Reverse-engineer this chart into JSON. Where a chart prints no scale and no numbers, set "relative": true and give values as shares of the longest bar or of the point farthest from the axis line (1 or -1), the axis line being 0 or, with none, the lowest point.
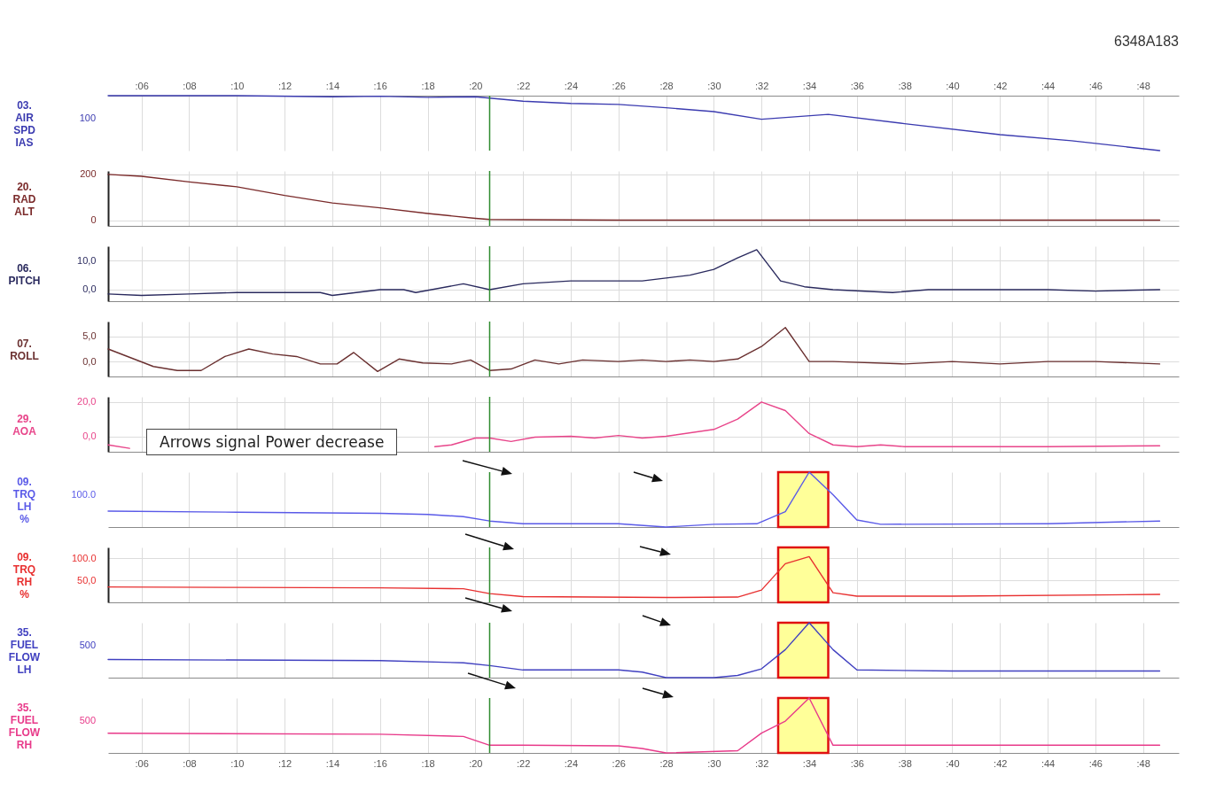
{
  "chart_data": [
    {
      "type": "line",
      "title": "6348A183",
      "ylabel": "03.\nAIR\nSPD\nIAS",
      "x": [
        4.6,
        10,
        14,
        16,
        18,
        20,
        21,
        22,
        24,
        26,
        28,
        30,
        32,
        34.8,
        38,
        42,
        45,
        48.7
      ],
      "series": [
        {
          "color": "#3b3bb0",
          "values": [
            1,
            1,
            0.98,
            0.99,
            0.97,
            0.98,
            0.94,
            0.9,
            0.86,
            0.84,
            0.78,
            0.71,
            0.57,
            0.66,
            0.49,
            0.29,
            0.18,
            0
          ]
        }
      ],
      "relative": true,
      "annotations": [
        "100"
      ],
      "xlim": [
        4.6,
        49.5
      ],
      "xticks": [
        {
          "value": 6,
          "label": ":06"
        },
        {
          "value": 8,
          "label": ":08"
        },
        {
          "value": 10,
          "label": ":10"
        },
        {
          "value": 12,
          "label": ":12"
        },
        {
          "value": 14,
          "label": ":14"
        },
        {
          "value": 16,
          "label": ":16"
        },
        {
          "value": 18,
          "label": ":18"
        },
        {
          "value": 20,
          "label": ":20"
        },
        {
          "value": 22,
          "label": ":22"
        },
        {
          "value": 24,
          "label": ":24"
        },
        {
          "value": 26,
          "label": ":26"
        },
        {
          "value": 28,
          "label": ":28"
        },
        {
          "value": 30,
          "label": ":30"
        },
        {
          "value": 32,
          "label": ":32"
        },
        {
          "value": 34,
          "label": ":34"
        },
        {
          "value": 36,
          "label": ":36"
        },
        {
          "value": 38,
          "label": ":38"
        },
        {
          "value": 40,
          "label": ":40"
        },
        {
          "value": 42,
          "label": ":42"
        },
        {
          "value": 44,
          "label": ":44"
        },
        {
          "value": 46,
          "label": ":46"
        },
        {
          "value": 48,
          "label": ":48"
        }
      ],
      "grid": true,
      "ref_lines": [
        {
          "axis": "x",
          "value": 20.6,
          "color": "#2e8b2e"
        }
      ]
    },
    {
      "type": "line",
      "ylabel": "20.\nRAD\nALT",
      "x": [
        4.6,
        6,
        8,
        10,
        12,
        14,
        16,
        18,
        20,
        20.6,
        22,
        24,
        26,
        48.7
      ],
      "series": [
        {
          "color": "#7a2a2a",
          "values": [
            200,
            192,
            167,
            146,
            108,
            75,
            54,
            29,
            8,
            3,
            2,
            1,
            0,
            0
          ]
        }
      ],
      "xlim": [
        4.6,
        49.5
      ],
      "xticks": [
        6,
        8,
        10,
        12,
        14,
        16,
        18,
        20,
        22,
        24,
        26,
        28,
        30,
        32,
        34,
        36,
        38,
        40,
        42,
        44,
        46,
        48
      ],
      "ylim": [
        -25,
        215
      ],
      "yticks": [
        200,
        0
      ],
      "grid": true,
      "tick_labels": "y",
      "ref_lines": [
        {
          "axis": "x",
          "value": 20.6,
          "color": "#2e8b2e"
        }
      ]
    },
    {
      "type": "line",
      "ylabel": "06.\nPITCH",
      "x": [
        4.6,
        6,
        8,
        10,
        12,
        13.5,
        14,
        16,
        17,
        17.5,
        19.5,
        20.6,
        22,
        24,
        26,
        27,
        28,
        29,
        30,
        31,
        31.8,
        32.8,
        33.8,
        35,
        37.5,
        39,
        44,
        46,
        48.7
      ],
      "series": [
        {
          "color": "#2a2a5e",
          "values": [
            -1.5,
            -2,
            -1.5,
            -1,
            -1,
            -1,
            -2,
            0,
            0,
            -1,
            2,
            0,
            2,
            3,
            3,
            3,
            4,
            5,
            7,
            11,
            13.8,
            3,
            1,
            0,
            -1,
            0,
            0,
            -0.5,
            0
          ]
        }
      ],
      "xlim": [
        4.6,
        49.5
      ],
      "xticks": [
        6,
        8,
        10,
        12,
        14,
        16,
        18,
        20,
        22,
        24,
        26,
        28,
        30,
        32,
        34,
        36,
        38,
        40,
        42,
        44,
        46,
        48
      ],
      "ylim": [
        -4,
        15
      ],
      "yticks": [
        {
          "value": 10,
          "label": "10,0"
        },
        {
          "value": 0,
          "label": "0,0"
        }
      ],
      "grid": true,
      "tick_labels": "y",
      "ref_lines": [
        {
          "axis": "x",
          "value": 20.6,
          "color": "#2e8b2e"
        }
      ]
    },
    {
      "type": "line",
      "ylabel": "07.\nROLL",
      "x": [
        4.6,
        6.5,
        7.5,
        8.5,
        9.5,
        10.5,
        11.5,
        12.5,
        13.5,
        14.2,
        14.9,
        15.9,
        16.8,
        17.8,
        19,
        19.8,
        20.6,
        21.5,
        22.5,
        23.5,
        24.5,
        26,
        27,
        28,
        29,
        30,
        31,
        32,
        33,
        34,
        35,
        38,
        40,
        42,
        44,
        46,
        48.7
      ],
      "series": [
        {
          "color": "#6a3030",
          "values": [
            2.5,
            -1,
            -1.8,
            -1.8,
            1,
            2.5,
            1.5,
            1,
            -0.5,
            -0.5,
            1.8,
            -2,
            0.5,
            -0.3,
            -0.5,
            0.3,
            -1.8,
            -1.5,
            0.3,
            -0.5,
            0.3,
            0,
            0.3,
            0,
            0.3,
            0,
            0.5,
            3,
            6.8,
            0,
            0,
            -0.5,
            0,
            -0.5,
            0,
            0,
            -0.5
          ]
        }
      ],
      "xlim": [
        4.6,
        49.5
      ],
      "xticks": [
        6,
        8,
        10,
        12,
        14,
        16,
        18,
        20,
        22,
        24,
        26,
        28,
        30,
        32,
        34,
        36,
        38,
        40,
        42,
        44,
        46,
        48
      ],
      "ylim": [
        -3,
        8
      ],
      "yticks": [
        {
          "value": 5,
          "label": "5,0"
        },
        {
          "value": 0,
          "label": "0,0"
        }
      ],
      "grid": true,
      "tick_labels": "y",
      "ref_lines": [
        {
          "axis": "x",
          "value": 20.6,
          "color": "#2e8b2e"
        }
      ]
    },
    {
      "type": "line",
      "ylabel": "29.\nAOA",
      "x": [
        4.6,
        5.5,
        12,
        18.3,
        19,
        20,
        20.6,
        21.5,
        22.5,
        24,
        25,
        26,
        27,
        28,
        30,
        31,
        32,
        33,
        34,
        35,
        36,
        37,
        38,
        44,
        48.7
      ],
      "series": [
        {
          "color": "#e8458a",
          "values": [
            -5,
            -7,
            null,
            -6,
            -5,
            -1,
            -1,
            -3,
            -0.5,
            0,
            -1,
            0.5,
            -1,
            0,
            4,
            10,
            20,
            15,
            1.6,
            -5,
            -6,
            -5,
            -6,
            -6,
            -5.5
          ]
        }
      ],
      "xlim": [
        4.6,
        49.5
      ],
      "xticks": [
        6,
        8,
        10,
        12,
        14,
        16,
        18,
        20,
        22,
        24,
        26,
        28,
        30,
        32,
        34,
        36,
        38,
        40,
        42,
        44,
        46,
        48
      ],
      "ylim": [
        -9,
        23
      ],
      "yticks": [
        {
          "value": 20,
          "label": "20,0"
        },
        {
          "value": 0,
          "label": "0,0"
        }
      ],
      "grid": true,
      "tick_labels": "y",
      "ref_lines": [
        {
          "axis": "x",
          "value": 20.6,
          "color": "#2e8b2e"
        }
      ],
      "annotations": [
        "Arrows signal Power decrease"
      ]
    },
    {
      "type": "line",
      "ylabel": "09.\nTRQ\nLH\n%",
      "x": [
        4.6,
        10,
        16,
        18,
        19.5,
        20.6,
        22,
        26,
        28,
        30,
        31.8,
        33,
        34,
        35,
        36,
        37,
        44,
        48.7
      ],
      "series": [
        {
          "color": "#5a5ae8",
          "values": [
            0.29,
            0.27,
            0.25,
            0.23,
            0.19,
            0.11,
            0.06,
            0.06,
            0,
            0.05,
            0.06,
            0.28,
            1,
            0.59,
            0.13,
            0.05,
            0.06,
            0.11
          ]
        }
      ],
      "relative": true,
      "annotations": [
        "100.0"
      ],
      "xlim": [
        4.6,
        49.5
      ],
      "xticks": [
        6,
        8,
        10,
        12,
        14,
        16,
        18,
        20,
        22,
        24,
        26,
        28,
        30,
        32,
        34,
        36,
        38,
        40,
        42,
        44,
        46,
        48
      ],
      "grid": true,
      "tick_labels": "y",
      "ref_lines": [
        {
          "axis": "x",
          "value": 20.6,
          "color": "#2e8b2e"
        }
      ],
      "bands": [
        {
          "axis": "x",
          "from": 32.7,
          "to": 34.8,
          "color": "#ffff99"
        }
      ]
    },
    {
      "type": "line",
      "ylabel": "09.\nTRQ\nRH\n%",
      "x": [
        4.6,
        10,
        16,
        19.5,
        20.6,
        22,
        28,
        31,
        32,
        33,
        34,
        35,
        36,
        40,
        48.7
      ],
      "series": [
        {
          "color": "#e83030",
          "values": [
            35,
            34,
            33,
            31,
            20,
            13,
            11,
            12,
            28,
            88,
            104,
            22,
            14,
            14,
            18
          ]
        }
      ],
      "xlim": [
        4.6,
        49.5
      ],
      "xticks": [
        6,
        8,
        10,
        12,
        14,
        16,
        18,
        20,
        22,
        24,
        26,
        28,
        30,
        32,
        34,
        36,
        38,
        40,
        42,
        44,
        46,
        48
      ],
      "ylim": [
        0,
        125
      ],
      "yticks": [
        {
          "value": 100,
          "label": "100.0"
        },
        {
          "value": 50,
          "label": "50,0"
        }
      ],
      "grid": true,
      "tick_labels": "y",
      "ref_lines": [
        {
          "axis": "x",
          "value": 20.6,
          "color": "#2e8b2e"
        }
      ],
      "bands": [
        {
          "axis": "x",
          "from": 32.7,
          "to": 34.8,
          "color": "#ffff99"
        }
      ]
    },
    {
      "type": "line",
      "ylabel": "35.\nFUEL\nFLOW\nLH",
      "x": [
        4.6,
        16,
        19.5,
        20.6,
        22,
        26,
        27,
        28,
        30,
        31,
        32,
        33,
        34,
        35,
        36,
        40,
        48.7
      ],
      "series": [
        {
          "color": "#4040c0",
          "values": [
            0.33,
            0.31,
            0.27,
            0.22,
            0.14,
            0.14,
            0.1,
            0,
            0,
            0.04,
            0.16,
            0.51,
            1,
            0.51,
            0.14,
            0.12,
            0.12
          ]
        }
      ],
      "relative": true,
      "annotations": [
        "500"
      ],
      "xlim": [
        4.6,
        49.5
      ],
      "xticks": [
        6,
        8,
        10,
        12,
        14,
        16,
        18,
        20,
        22,
        24,
        26,
        28,
        30,
        32,
        34,
        36,
        38,
        40,
        42,
        44,
        46,
        48
      ],
      "grid": true,
      "tick_labels": "y",
      "ref_lines": [
        {
          "axis": "x",
          "value": 20.6,
          "color": "#2e8b2e"
        }
      ],
      "bands": [
        {
          "axis": "x",
          "from": 32.7,
          "to": 34.8,
          "color": "#ffff99"
        }
      ]
    },
    {
      "type": "line",
      "ylabel": "35.\nFUEL\nFLOW\nRH",
      "x": [
        4.6,
        16,
        19.5,
        20.6,
        22,
        26,
        27,
        28,
        31,
        32,
        33,
        34,
        35,
        36,
        48.7
      ],
      "series": [
        {
          "color": "#e83a8a",
          "values": [
            0.36,
            0.34,
            0.3,
            0.14,
            0.14,
            0.13,
            0.08,
            0,
            0.04,
            0.36,
            0.58,
            1,
            0.14,
            0.14,
            0.14
          ]
        }
      ],
      "relative": true,
      "annotations": [
        "500"
      ],
      "xlim": [
        4.6,
        49.5
      ],
      "xticks": [
        {
          "value": 6,
          "label": ":06"
        },
        {
          "value": 8,
          "label": ":08"
        },
        {
          "value": 10,
          "label": ":10"
        },
        {
          "value": 12,
          "label": ":12"
        },
        {
          "value": 14,
          "label": ":14"
        },
        {
          "value": 16,
          "label": ":16"
        },
        {
          "value": 18,
          "label": ":18"
        },
        {
          "value": 20,
          "label": ":20"
        },
        {
          "value": 22,
          "label": ":22"
        },
        {
          "value": 24,
          "label": ":24"
        },
        {
          "value": 26,
          "label": ":26"
        },
        {
          "value": 28,
          "label": ":28"
        },
        {
          "value": 30,
          "label": ":30"
        },
        {
          "value": 32,
          "label": ":32"
        },
        {
          "value": 34,
          "label": ":34"
        },
        {
          "value": 36,
          "label": ":36"
        },
        {
          "value": 38,
          "label": ":38"
        },
        {
          "value": 40,
          "label": ":40"
        },
        {
          "value": 42,
          "label": ":42"
        },
        {
          "value": 44,
          "label": ":44"
        },
        {
          "value": 46,
          "label": ":46"
        },
        {
          "value": 48,
          "label": ":48"
        }
      ],
      "grid": true,
      "ref_lines": [
        {
          "axis": "x",
          "value": 20.6,
          "color": "#2e8b2e"
        }
      ],
      "bands": [
        {
          "axis": "x",
          "from": 32.7,
          "to": 34.8,
          "color": "#ffff99"
        }
      ]
    }
  ]
}
